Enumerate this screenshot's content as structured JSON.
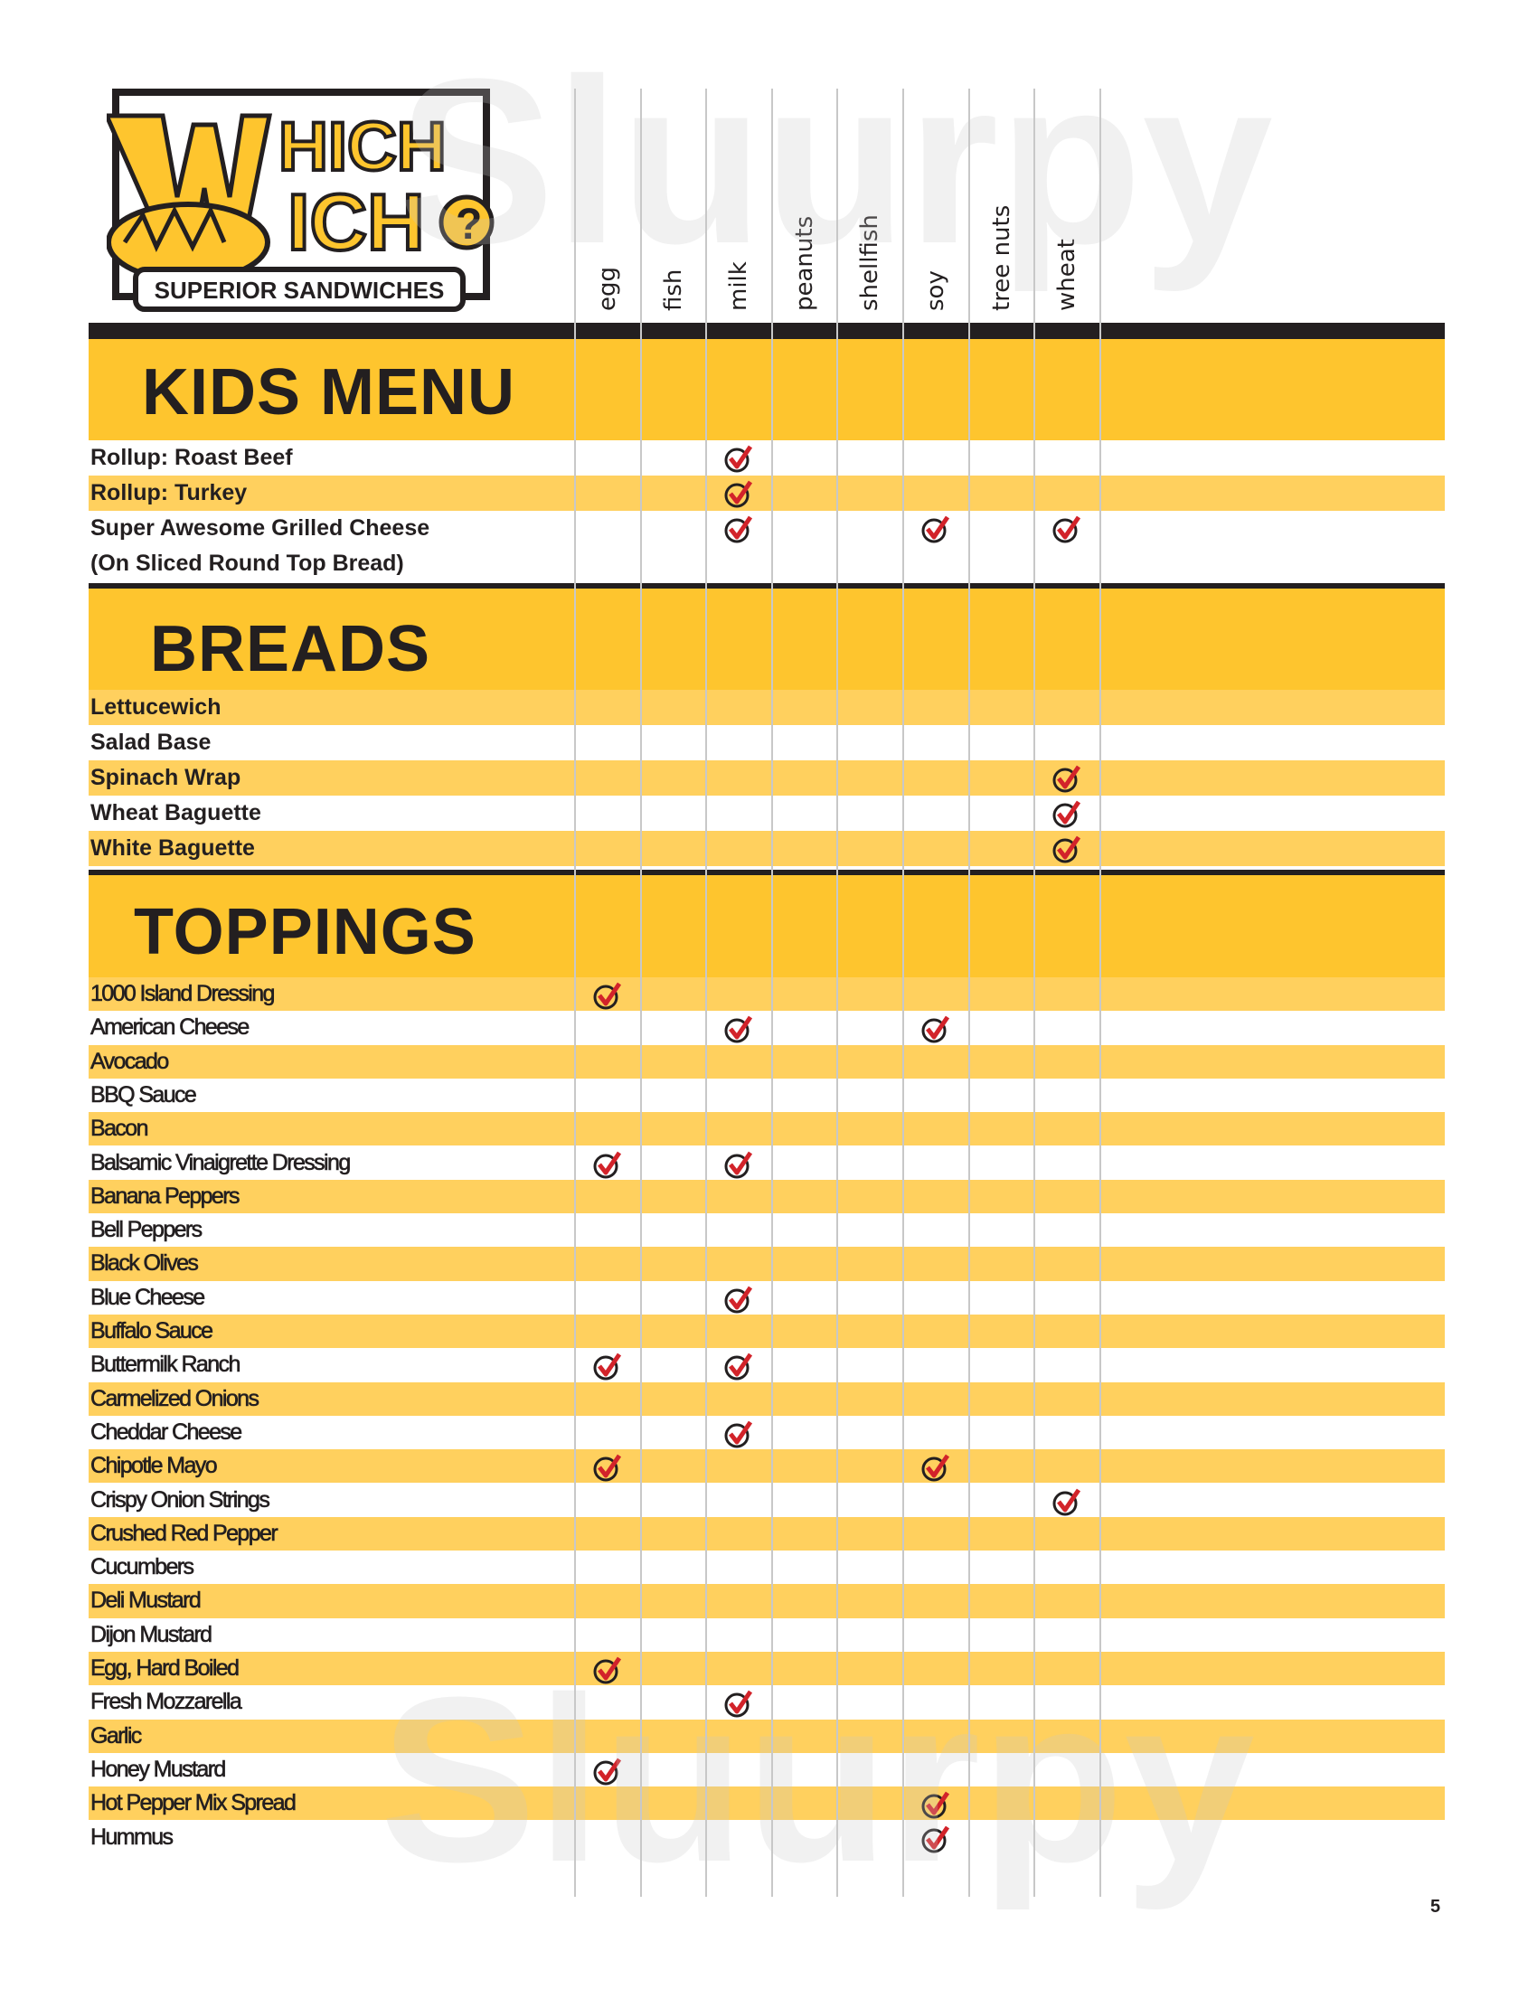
{
  "logo": {
    "line1": "WHICH",
    "line2": "WICH",
    "tagline": "SUPERIOR SANDWICHES"
  },
  "allergens": [
    "egg",
    "fish",
    "milk",
    "peanuts",
    "shellfish",
    "soy",
    "tree nuts",
    "wheat"
  ],
  "colors": {
    "banner": "#fec52e",
    "stripe": "#ffd05e",
    "check": "#d2232a",
    "bar": "#231f20"
  },
  "sections": [
    {
      "title": "KIDS MENU",
      "items": [
        {
          "name": "Rollup: Roast Beef",
          "allergens": [
            "milk"
          ]
        },
        {
          "name": "Rollup: Turkey",
          "allergens": [
            "milk"
          ]
        },
        {
          "name": "Super Awesome Grilled Cheese",
          "subname": "(On Sliced Round Top Bread)",
          "allergens": [
            "milk",
            "soy",
            "wheat"
          ]
        }
      ]
    },
    {
      "title": "BREADS",
      "items": [
        {
          "name": "Lettucewich",
          "allergens": []
        },
        {
          "name": "Salad Base",
          "allergens": []
        },
        {
          "name": "Spinach Wrap",
          "allergens": [
            "wheat"
          ]
        },
        {
          "name": "Wheat Baguette",
          "allergens": [
            "wheat"
          ]
        },
        {
          "name": "White Baguette",
          "allergens": [
            "wheat"
          ]
        }
      ]
    },
    {
      "title": "TOPPINGS",
      "items": [
        {
          "name": "1000 Island Dressing",
          "allergens": [
            "egg"
          ]
        },
        {
          "name": "American Cheese",
          "allergens": [
            "milk",
            "soy"
          ]
        },
        {
          "name": "Avocado",
          "allergens": []
        },
        {
          "name": "BBQ Sauce",
          "allergens": []
        },
        {
          "name": "Bacon",
          "allergens": []
        },
        {
          "name": "Balsamic Vinaigrette Dressing",
          "allergens": [
            "egg",
            "milk"
          ]
        },
        {
          "name": "Banana Peppers",
          "allergens": []
        },
        {
          "name": "Bell Peppers",
          "allergens": []
        },
        {
          "name": "Black Olives",
          "allergens": []
        },
        {
          "name": "Blue Cheese",
          "allergens": [
            "milk"
          ]
        },
        {
          "name": "Buffalo Sauce",
          "allergens": []
        },
        {
          "name": "Buttermilk Ranch",
          "allergens": [
            "egg",
            "milk"
          ]
        },
        {
          "name": "Carmelized Onions",
          "allergens": []
        },
        {
          "name": "Cheddar Cheese",
          "allergens": [
            "milk"
          ]
        },
        {
          "name": "Chipotle Mayo",
          "allergens": [
            "egg",
            "soy"
          ]
        },
        {
          "name": "Crispy Onion Strings",
          "allergens": [
            "wheat"
          ]
        },
        {
          "name": "Crushed Red Pepper",
          "allergens": []
        },
        {
          "name": "Cucumbers",
          "allergens": []
        },
        {
          "name": "Deli Mustard",
          "allergens": []
        },
        {
          "name": "Dijon Mustard",
          "allergens": []
        },
        {
          "name": "Egg, Hard Boiled",
          "allergens": [
            "egg"
          ]
        },
        {
          "name": "Fresh Mozzarella",
          "allergens": [
            "milk"
          ]
        },
        {
          "name": "Garlic",
          "allergens": []
        },
        {
          "name": "Honey Mustard",
          "allergens": [
            "egg"
          ]
        },
        {
          "name": "Hot Pepper Mix Spread",
          "allergens": [
            "soy"
          ]
        },
        {
          "name": "Hummus",
          "allergens": [
            "soy"
          ]
        }
      ]
    }
  ],
  "page_number": "5",
  "watermark": "Sluurpy"
}
